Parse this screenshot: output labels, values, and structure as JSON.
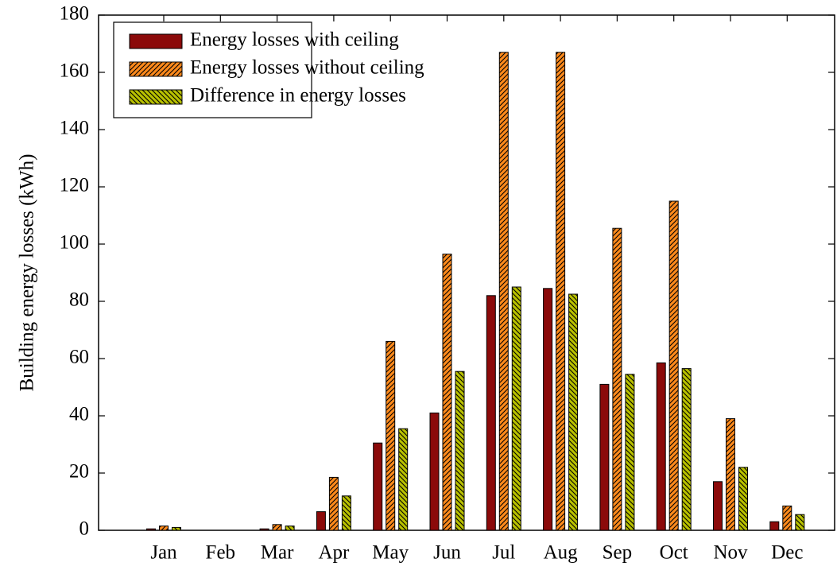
{
  "chart_data": {
    "type": "bar",
    "y_label": "Building energy losses (kWh)",
    "categories": [
      "Jan",
      "Feb",
      "Mar",
      "Apr",
      "May",
      "Jun",
      "Jul",
      "Aug",
      "Sep",
      "Oct",
      "Nov",
      "Dec"
    ],
    "series": [
      {
        "name": "Energy losses with ceiling",
        "color": "#8b0a0a",
        "hatch": "none",
        "values": [
          0.5,
          0,
          0.5,
          6.5,
          30.5,
          41,
          82,
          84.5,
          51,
          58.5,
          17,
          3
        ]
      },
      {
        "name": "Energy losses without ceiling",
        "color": "#ff8a1c",
        "hatch": "/",
        "values": [
          1.5,
          0,
          2,
          18.5,
          66,
          96.5,
          167,
          167,
          105.5,
          115,
          39,
          8.5
        ]
      },
      {
        "name": "Difference in energy losses",
        "color": "#b8c000",
        "hatch": "\\",
        "values": [
          1,
          0,
          1.5,
          12,
          35.5,
          55.5,
          85,
          82.5,
          54.5,
          56.5,
          22,
          5.5
        ]
      }
    ],
    "ylim": [
      0,
      180
    ],
    "yticks": [
      0,
      20,
      40,
      60,
      80,
      100,
      120,
      140,
      160,
      180
    ],
    "legend": "upper left"
  }
}
